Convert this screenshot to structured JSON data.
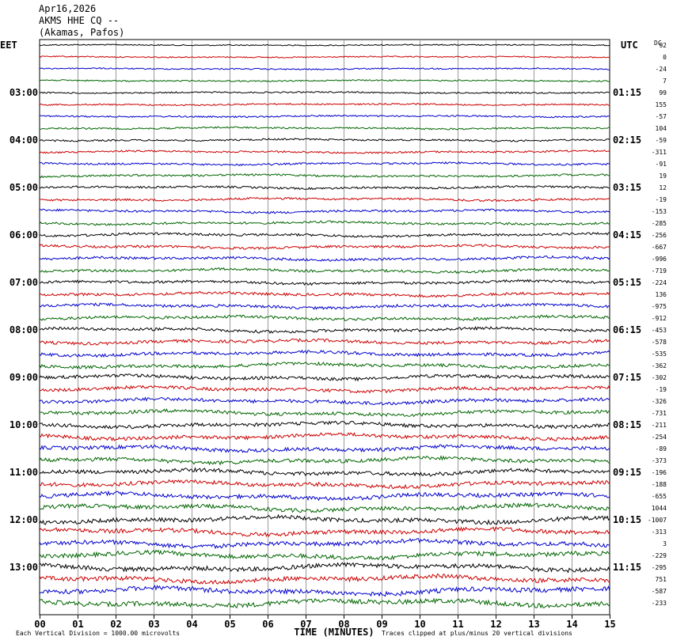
{
  "header": {
    "date": "Apr16,2026",
    "station": "AKMS HHE CQ --",
    "location": "(Akamas, Pafos)"
  },
  "labels": {
    "left_tz": "EET",
    "right_tz": "UTC",
    "dc": "DC",
    "xlabel": "TIME (MINUTES)",
    "scale_note": "Each Vertical Division = 1000.00 microvolts",
    "clip_note": "Traces clipped at plus/minus 20 vertical divisions"
  },
  "chart_data": {
    "type": "line",
    "title": "AKMS HHE CQ --",
    "xlabel": "TIME (MINUTES)",
    "xlim": [
      0,
      15
    ],
    "x_ticks": [
      "00",
      "01",
      "02",
      "03",
      "04",
      "05",
      "06",
      "07",
      "08",
      "09",
      "10",
      "11",
      "12",
      "13",
      "14",
      "15"
    ],
    "trace_colors": [
      "#000000",
      "#cc0000",
      "#0000cc",
      "#006600"
    ],
    "left_hour_labels": [
      "03:00",
      "04:00",
      "05:00",
      "06:00",
      "07:00",
      "08:00",
      "09:00",
      "10:00",
      "11:00",
      "12:00",
      "13:00"
    ],
    "right_hour_labels": [
      "01:15",
      "02:15",
      "03:15",
      "04:15",
      "05:15",
      "06:15",
      "07:15",
      "08:15",
      "09:15",
      "10:15",
      "11:15"
    ],
    "dc_offsets": [
      "92",
      "0",
      "-24",
      "7",
      "99",
      "155",
      "-57",
      "104",
      "-59",
      "-311",
      "-91",
      "19",
      "12",
      "-19",
      "-153",
      "-285",
      "-256",
      "-667",
      "-996",
      "-719",
      "-224",
      "136",
      "-975",
      "-912",
      "-453",
      "-578",
      "-535",
      "-362",
      "-302",
      "-19",
      "-326",
      "-731",
      "-211",
      "-254",
      "-89",
      "-373",
      "-196",
      "-188",
      "-655",
      "1044",
      "-1007",
      "-313",
      "3",
      "-229",
      "-295",
      "751",
      "-587",
      "-233"
    ],
    "trace_count": 48,
    "traces_per_hour": 4
  }
}
